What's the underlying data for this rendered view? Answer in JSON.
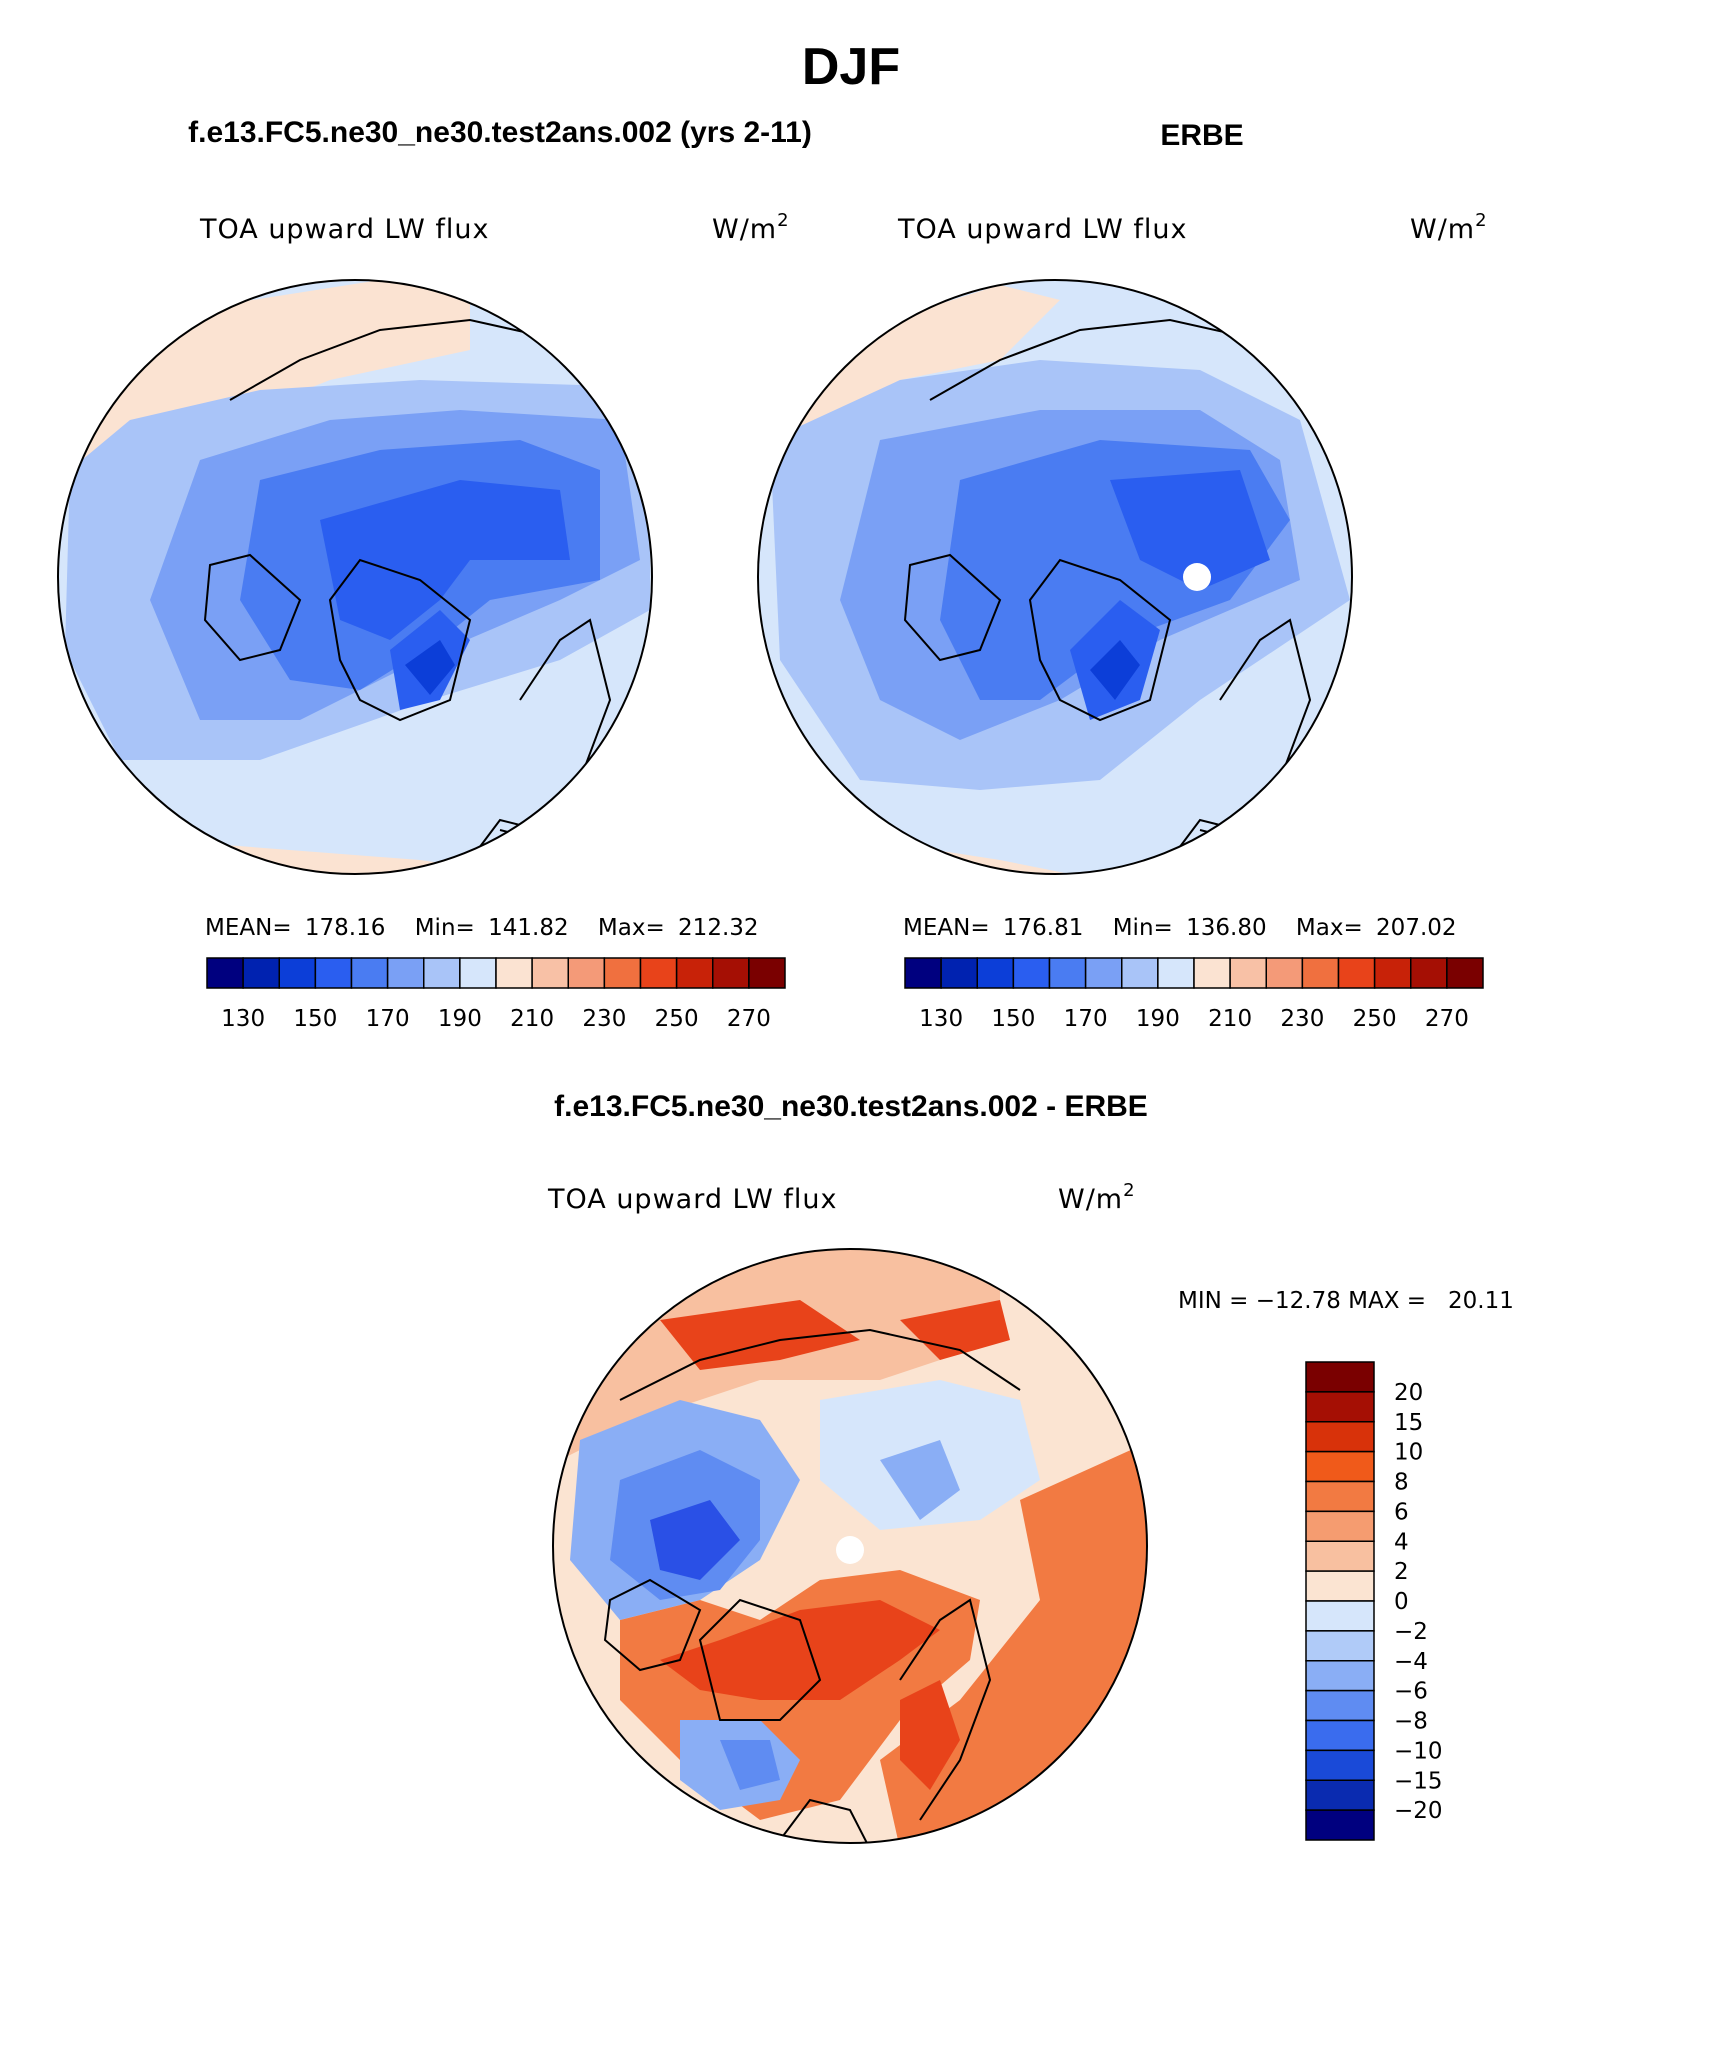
{
  "figure": {
    "season": "DJF",
    "top_left_title": "f.e13.FC5.ne30_ne30.test2ans.002 (yrs 2-11)",
    "top_right_title": "ERBE",
    "bottom_title": "f.e13.FC5.ne30_ne30.test2ans.002 - ERBE"
  },
  "panels": [
    {
      "variable": "TOA upward LW flux",
      "units_base": "W/m",
      "units_exp": "2",
      "mean_label": "MEAN=",
      "mean": "178.16",
      "min_label": "Min=",
      "min": "141.82",
      "max_label": "Max=",
      "max": "212.32"
    },
    {
      "variable": "TOA upward LW flux",
      "units_base": "W/m",
      "units_exp": "2",
      "mean_label": "MEAN=",
      "mean": "176.81",
      "min_label": "Min=",
      "min": "136.80",
      "max_label": "Max=",
      "max": "207.02"
    },
    {
      "variable": "TOA upward LW flux",
      "units_base": "W/m",
      "units_exp": "2",
      "minmax_text": "MIN = −12.78 MAX =   20.11"
    }
  ],
  "colorbar_abs": {
    "colors": [
      "#00007f",
      "#0022b0",
      "#0c3ed8",
      "#2a5ef0",
      "#4a7cf2",
      "#7aa0f5",
      "#a9c4f8",
      "#d6e6fb",
      "#fbe3d2",
      "#f8c1a6",
      "#f49a78",
      "#f0703f",
      "#e8431a",
      "#c82208",
      "#a50f04",
      "#7a0000"
    ],
    "tick_labels": [
      "130",
      "150",
      "170",
      "190",
      "210",
      "230",
      "250",
      "270"
    ]
  },
  "colorbar_diff": {
    "colors": [
      "#7a0000",
      "#a50f04",
      "#d8320a",
      "#f05a1a",
      "#f27a42",
      "#f59c70",
      "#f8c0a0",
      "#fbe4d2",
      "#d6e6fb",
      "#b0cbf8",
      "#8aaef5",
      "#5f8cf2",
      "#3a6cee",
      "#1a4ad8",
      "#0a2bb0",
      "#00007f"
    ],
    "tick_labels": [
      "20",
      "15",
      "10",
      "8",
      "6",
      "4",
      "2",
      "0",
      "−2",
      "−4",
      "−6",
      "−8",
      "−10",
      "−15",
      "−20"
    ]
  },
  "map_colors": {
    "deep": "#2a5ef0",
    "mid": "#4a7cf2",
    "light": "#7aa0f5",
    "pale": "#a9c4f8",
    "palest": "#d6e6fb",
    "warm": "#fbe3d2",
    "diff_blue": "#5f8cf2",
    "diff_darkblue": "#2a50e6",
    "diff_red": "#e8431a",
    "diff_orange": "#f27a42",
    "diff_peach": "#f8c0a0"
  }
}
